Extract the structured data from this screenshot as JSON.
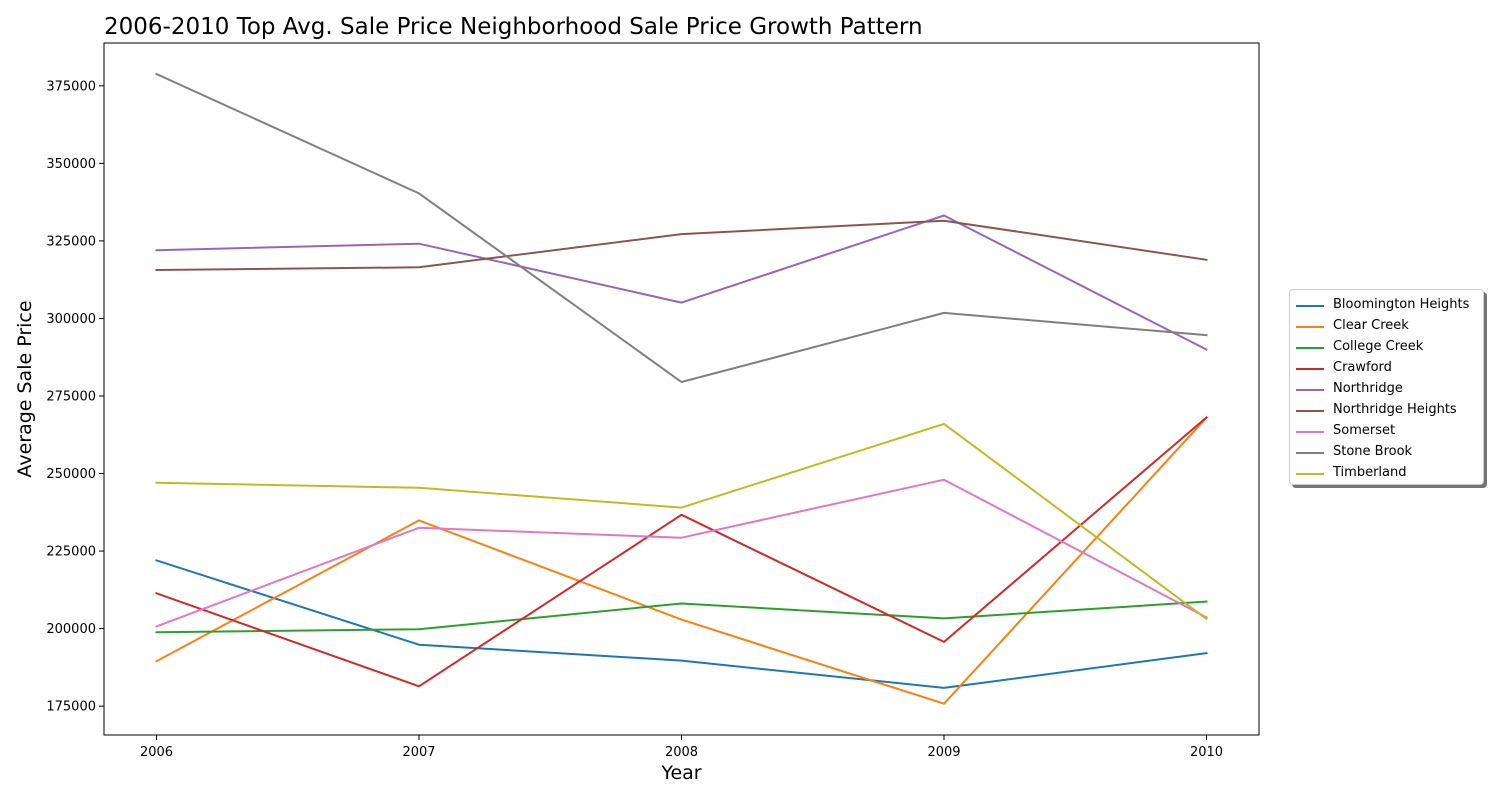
{
  "chart_data": {
    "type": "line",
    "title": "2006-2010 Top Avg. Sale Price Neighborhood Sale Price Growth Pattern",
    "xlabel": "Year",
    "ylabel": "Average Sale Price",
    "x": [
      2006,
      2007,
      2008,
      2009,
      2010
    ],
    "x_tick_labels": [
      "2006",
      "2007",
      "2008",
      "2009",
      "2010"
    ],
    "y_ticks": [
      175000,
      200000,
      225000,
      250000,
      275000,
      300000,
      325000,
      350000,
      375000
    ],
    "y_tick_labels": [
      "175000",
      "200000",
      "225000",
      "250000",
      "275000",
      "300000",
      "325000",
      "350000",
      "375000"
    ],
    "xlim": [
      2005.8,
      2010.2
    ],
    "ylim": [
      165700,
      388800
    ],
    "grid": false,
    "legend_position": "center-right outside",
    "series": [
      {
        "name": "Bloomington Heights",
        "color": "#1f77b4",
        "values": [
          222000,
          194800,
          189700,
          180900,
          192100
        ]
      },
      {
        "name": "Clear Creek",
        "color": "#ff7f0e",
        "values": [
          189500,
          234900,
          202900,
          175800,
          268000
        ]
      },
      {
        "name": "College Creek",
        "color": "#2ca02c",
        "values": [
          198800,
          199800,
          208100,
          203300,
          208700
        ]
      },
      {
        "name": "Crawford",
        "color": "#d62728",
        "values": [
          211400,
          181400,
          236700,
          195700,
          268100
        ]
      },
      {
        "name": "Northridge",
        "color": "#9467bd",
        "values": [
          322000,
          324100,
          305100,
          333200,
          290000
        ]
      },
      {
        "name": "Northridge Heights",
        "color": "#8c564b",
        "values": [
          315600,
          316500,
          327200,
          331500,
          318900
        ]
      },
      {
        "name": "Somerset",
        "color": "#e377c2",
        "values": [
          200700,
          232500,
          229300,
          248000,
          203600
        ]
      },
      {
        "name": "Stone Brook",
        "color": "#7f7f7f",
        "values": [
          378800,
          340300,
          279500,
          301800,
          294600
        ]
      },
      {
        "name": "Timberland",
        "color": "#bcbd22",
        "values": [
          247000,
          245400,
          239000,
          266000,
          203100
        ]
      }
    ]
  }
}
